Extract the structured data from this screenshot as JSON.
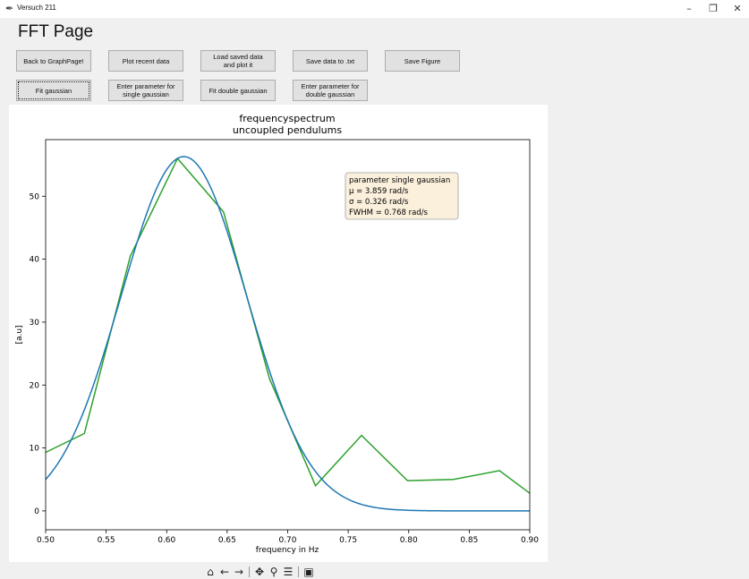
{
  "window": {
    "title": "Versuch 211",
    "icon": "feather-icon",
    "controls": [
      "minimize",
      "restore",
      "close"
    ]
  },
  "page": {
    "heading": "FFT Page"
  },
  "buttons": {
    "back": "Back to GraphPage!",
    "plot_recent": "Plot recent data",
    "load_saved": "Load saved data\nand plot it",
    "save_txt": "Save data to .txt",
    "save_figure": "Save Figure",
    "fit_gaussian": "Fit gaussian",
    "enter_single": "Enter parameter for\nsingle gaussian",
    "fit_double": "Fit double gaussian",
    "enter_double": "Enter parameter for\ndouble gaussian"
  },
  "toolbar": {
    "icons": [
      "home-icon",
      "back-arrow-icon",
      "forward-arrow-icon",
      "pan-icon",
      "zoom-icon",
      "configure-subplots-icon",
      "save-icon"
    ]
  },
  "colors": {
    "fit": "#1f77b4",
    "data": "#2ca02c",
    "legend_bg": "#fbf0dc",
    "legend_border": "#a0a0a0"
  },
  "chart_data": {
    "type": "line",
    "title": "frequencyspectrum",
    "subtitle": "uncoupled pendulums",
    "xlabel": "frequency in Hz",
    "ylabel": "[a.u]",
    "xlim": [
      0.5,
      0.9
    ],
    "ylim": [
      -3,
      59
    ],
    "xticks": [
      "0.50",
      "0.55",
      "0.60",
      "0.65",
      "0.70",
      "0.75",
      "0.80",
      "0.85",
      "0.90"
    ],
    "yticks": [
      "0",
      "10",
      "20",
      "30",
      "40",
      "50"
    ],
    "grid": false,
    "series": [
      {
        "kind": "data",
        "color": "#2ca02c",
        "x": [
          0.5,
          0.532,
          0.57,
          0.609,
          0.647,
          0.685,
          0.723,
          0.761,
          0.799,
          0.837,
          0.875,
          0.9
        ],
        "y": [
          9.3,
          12.3,
          40.5,
          56.0,
          47.5,
          21.0,
          4.0,
          12.0,
          4.8,
          5.0,
          6.4,
          2.8
        ]
      },
      {
        "kind": "fit",
        "color": "#1f77b4",
        "model": "gaussian",
        "mu_hz": 0.6142,
        "sigma_hz": 0.0519,
        "amplitude": 56.3
      }
    ],
    "annotation": {
      "lines": [
        "parameter single gaussian",
        "μ = 3.859 rad/s",
        "σ = 0.326 rad/s",
        "FWHM = 0.768 rad/s"
      ],
      "placement": "top-right"
    }
  }
}
